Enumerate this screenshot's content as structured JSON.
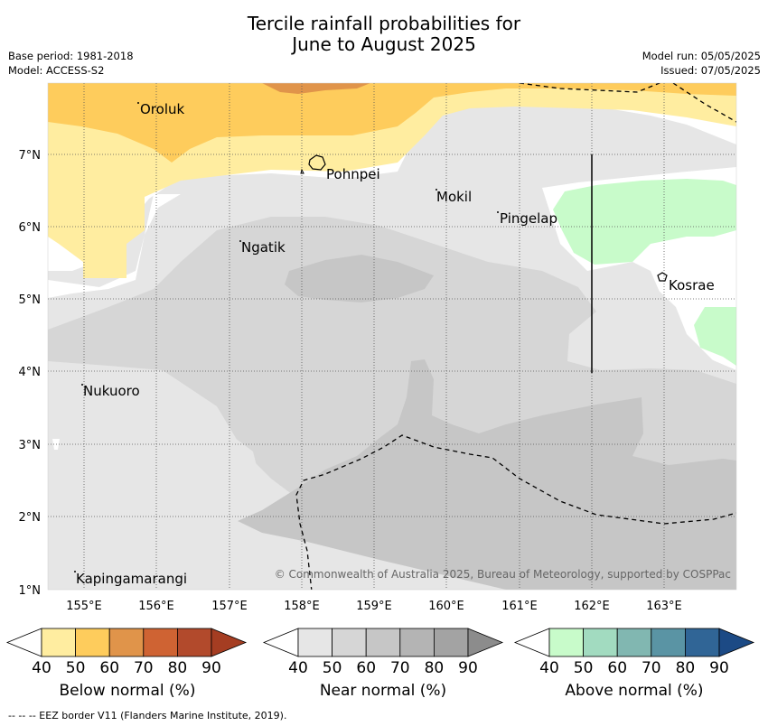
{
  "title": {
    "line1": "Tercile rainfall probabilities for",
    "line2": "June to August 2025"
  },
  "meta": {
    "base_period": "Base period: 1981-2018",
    "model": "Model: ACCESS-S2",
    "model_run": "Model run: 05/05/2025",
    "issued": "Issued: 07/05/2025"
  },
  "map": {
    "lon_labels": [
      "155°E",
      "156°E",
      "157°E",
      "158°E",
      "159°E",
      "160°E",
      "161°E",
      "162°E",
      "163°E"
    ],
    "lat_labels": [
      "7°N",
      "6°N",
      "5°N",
      "4°N",
      "3°N",
      "2°N",
      "1°N"
    ],
    "places": {
      "oroluk": "Oroluk",
      "pohnpei": "Pohnpei",
      "mokil": "Mokil",
      "pingelap": "Pingelap",
      "ngatik": "Ngatik",
      "kosrae": "Kosrae",
      "nukuoro": "Nukuoro",
      "kapingamarangi": "Kapingamarangi"
    },
    "copyright": "© Commonwealth of Australia 2025, Bureau of Meteorology, supported by COSPPac"
  },
  "legend": {
    "below": {
      "title": "Below normal (%)",
      "ticks": [
        "40",
        "50",
        "60",
        "70",
        "80",
        "90"
      ],
      "colors": [
        "#ffffff",
        "#ffeda0",
        "#fecc5c",
        "#e0944a",
        "#cf6333",
        "#b24a2c",
        "#a53d22"
      ]
    },
    "near": {
      "title": "Near normal (%)",
      "ticks": [
        "40",
        "50",
        "60",
        "70",
        "80",
        "90"
      ],
      "colors": [
        "#ffffff",
        "#e6e6e6",
        "#d6d6d6",
        "#c6c6c6",
        "#b4b4b4",
        "#a3a3a3",
        "#8c8c8c"
      ]
    },
    "above": {
      "title": "Above normal (%)",
      "ticks": [
        "40",
        "50",
        "60",
        "70",
        "80",
        "90"
      ],
      "colors": [
        "#ffffff",
        "#c8fbca",
        "#a2dbc0",
        "#81b7b1",
        "#5a94a4",
        "#306596",
        "#1c4a85"
      ]
    }
  },
  "footer": {
    "eez_note": "--  --  -- EEZ border V11 (Flanders Marine Institute, 2019)."
  }
}
